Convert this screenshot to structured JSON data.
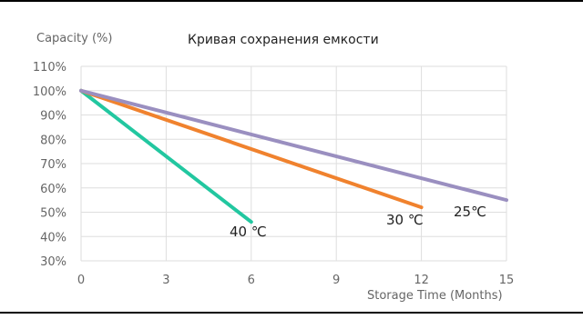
{
  "chart_data": {
    "type": "line",
    "title": "Кривая сохранения емкости",
    "ylabel": "Capacity (%)",
    "xlabel": "Storage Time (Months)",
    "xlim": [
      0,
      15
    ],
    "ylim": [
      30,
      110
    ],
    "xticks": [
      0,
      3,
      6,
      9,
      12,
      15
    ],
    "yticks": [
      30,
      40,
      50,
      60,
      70,
      80,
      90,
      100,
      110
    ],
    "yticklabels": [
      "30%",
      "40%",
      "50%",
      "60%",
      "70%",
      "80%",
      "90%",
      "100%",
      "110%"
    ],
    "grid": true,
    "series": [
      {
        "name": "40 ℃",
        "color": "#22c7a0",
        "x": [
          0,
          6
        ],
        "y": [
          100,
          46
        ]
      },
      {
        "name": "30 ℃",
        "color": "#f0822e",
        "x": [
          0,
          12
        ],
        "y": [
          100,
          52
        ]
      },
      {
        "name": "25℃",
        "color": "#9a8fc0",
        "x": [
          0,
          15
        ],
        "y": [
          100,
          55
        ]
      }
    ]
  }
}
